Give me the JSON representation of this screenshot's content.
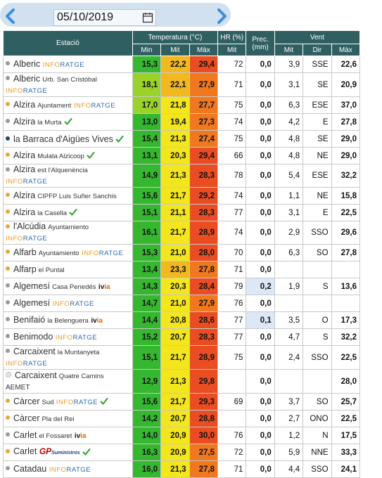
{
  "date_bar": {
    "date_value": "05/10/2019",
    "prev_icon": "chevron-left-icon",
    "next_icon": "chevron-right-icon",
    "calendar_icon": "calendar-icon",
    "accent_color": "#3a8ee0"
  },
  "headers": {
    "station": "Estació",
    "temperature": "Temperatura (°C)",
    "humidity": "HR (%)",
    "precipitation": "Prec. (mm)",
    "wind": "Vent",
    "min": "Min",
    "mit": "Mit",
    "max": "Màx",
    "hr_mit": "Mit",
    "wind_mit": "Mit",
    "wind_dir": "Dir",
    "wind_max": "Màx"
  },
  "temp_colors": {
    "min_green": "#35b82f",
    "min_lightgreen": "#9ad22a",
    "mit_yellow": "#f3e61c",
    "mit_orange": "#f2b820",
    "max_orange": "#f0781e",
    "max_red": "#ea4d22"
  },
  "rows": [
    {
      "name": "Alberic",
      "sub": "",
      "brand": "INFORATGE",
      "brand2": "",
      "dot": "#9a9a9a",
      "check": false,
      "min": "15,3",
      "mit": "22,2",
      "max": "29,4",
      "hr": "72",
      "prec": "0,0",
      "w_mit": "3,9",
      "w_dir": "SSE",
      "w_max": "22,6"
    },
    {
      "name": "Alberic",
      "sub": "Urb. San Cristóbal",
      "brand": "",
      "brand2": "INFORATGE",
      "dot": "#9a9a9a",
      "check": false,
      "min": "18,1",
      "mit": "22,1",
      "max": "27,9",
      "hr": "71",
      "prec": "0,0",
      "w_mit": "3,1",
      "w_dir": "SE",
      "w_max": "20,9"
    },
    {
      "name": "Alzira",
      "sub": "Ajuntament",
      "brand": "INFORATGE",
      "brand2": "",
      "dot": "#e8a73a",
      "check": false,
      "min": "17,0",
      "mit": "21,8",
      "max": "27,7",
      "hr": "75",
      "prec": "0,0",
      "w_mit": "6,3",
      "w_dir": "ESE",
      "w_max": "37,0"
    },
    {
      "name": "Alzira",
      "sub": "la Murta",
      "brand": "",
      "brand2": "",
      "dot": "#9a9a9a",
      "check": true,
      "min": "13,0",
      "mit": "19,4",
      "max": "27,3",
      "hr": "74",
      "prec": "0,0",
      "w_mit": "4,2",
      "w_dir": "E",
      "w_max": "27,8"
    },
    {
      "name": "la Barraca d'Aigües Vives",
      "sub": "",
      "brand": "",
      "brand2": "",
      "dot": "#1a4a6a",
      "check": true,
      "min": "15,4",
      "mit": "21,3",
      "max": "27,4",
      "hr": "75",
      "prec": "0,0",
      "w_mit": "4,8",
      "w_dir": "SE",
      "w_max": "29,0"
    },
    {
      "name": "Alzira",
      "sub": "Mulata Alzicoop",
      "brand": "",
      "brand2": "",
      "dot": "#e8a73a",
      "check": true,
      "min": "13,1",
      "mit": "20,3",
      "max": "29,4",
      "hr": "66",
      "prec": "0,0",
      "w_mit": "4,8",
      "w_dir": "NE",
      "w_max": "29,0"
    },
    {
      "name": "Alzira",
      "sub": "est l'Alquenència",
      "brand": "INFORATGE",
      "brand2": "",
      "dot": "#9a9a9a",
      "check": false,
      "min": "14,9",
      "mit": "21,3",
      "max": "28,3",
      "hr": "78",
      "prec": "0,0",
      "w_mit": "5,4",
      "w_dir": "ESE",
      "w_max": "32,2"
    },
    {
      "name": "Alzira",
      "sub": "CIPFP Luis Suñer Sanchis",
      "brand": "",
      "brand2": "",
      "dot": "#e8a73a",
      "check": false,
      "min": "15,6",
      "mit": "21,7",
      "max": "29,2",
      "hr": "74",
      "prec": "0,0",
      "w_mit": "1,1",
      "w_dir": "NE",
      "w_max": "15,8"
    },
    {
      "name": "Alzira",
      "sub": "la Casella",
      "brand": "",
      "brand2": "",
      "dot": "#e8a73a",
      "check": true,
      "min": "15,1",
      "mit": "21,1",
      "max": "28,3",
      "hr": "77",
      "prec": "0,0",
      "w_mit": "3,1",
      "w_dir": "E",
      "w_max": "22,5"
    },
    {
      "name": "l'Alcúdia",
      "sub": "Ayuntamiento",
      "brand": "INFORATGE",
      "brand2": "",
      "dot": "#e8a73a",
      "check": false,
      "min": "16,1",
      "mit": "21,7",
      "max": "28,9",
      "hr": "74",
      "prec": "0,0",
      "w_mit": "2,9",
      "w_dir": "SSO",
      "w_max": "29,6"
    },
    {
      "name": "Alfarb",
      "sub": "Ayuntamiento",
      "brand": "INFORATGE",
      "brand2": "",
      "dot": "#e8a73a",
      "check": false,
      "min": "15,3",
      "mit": "21,0",
      "max": "28,0",
      "hr": "70",
      "prec": "0,0",
      "w_mit": "6,3",
      "w_dir": "SO",
      "w_max": "27,8"
    },
    {
      "name": "Alfarp",
      "sub": "el Puntal",
      "brand": "",
      "brand2": "",
      "dot": "#e8a73a",
      "check": false,
      "min": "13,4",
      "mit": "23,3",
      "max": "27,8",
      "hr": "71",
      "prec": "0,0",
      "w_mit": "",
      "w_dir": "",
      "w_max": ""
    },
    {
      "name": "Algemesí",
      "sub": "Casa Penedés",
      "brand": "",
      "brand2": "",
      "ivia": true,
      "dot": "#9a9a9a",
      "check": false,
      "min": "14,3",
      "mit": "20,3",
      "max": "28,4",
      "hr": "79",
      "prec": "0,2",
      "prec_hl": true,
      "w_mit": "1,9",
      "w_dir": "S",
      "w_max": "13,6"
    },
    {
      "name": "Algemesí",
      "sub": "",
      "brand": "INFORATGE",
      "brand2": "",
      "dot": "#9a9a9a",
      "check": false,
      "min": "14,7",
      "mit": "21,0",
      "max": "27,9",
      "hr": "76",
      "prec": "0,0",
      "w_mit": "",
      "w_dir": "",
      "w_max": ""
    },
    {
      "name": "Benifaió",
      "sub": "la Belenguera",
      "brand": "",
      "brand2": "",
      "ivia": true,
      "dot": "#9a9a9a",
      "check": false,
      "min": "14,4",
      "mit": "20,8",
      "max": "28,6",
      "hr": "77",
      "prec": "0,1",
      "prec_hl": true,
      "w_mit": "3,5",
      "w_dir": "O",
      "w_max": "17,3"
    },
    {
      "name": "Benimodo",
      "sub": "",
      "brand": "INFORATGE",
      "brand2": "",
      "dot": "#9a9a9a",
      "check": false,
      "min": "15,2",
      "mit": "20,7",
      "max": "28,3",
      "hr": "77",
      "prec": "0,0",
      "w_mit": "4,7",
      "w_dir": "S",
      "w_max": "32,2"
    },
    {
      "name": "Carcaixent",
      "sub": "la Muntanyeta",
      "brand": "",
      "brand2": "INFORATGE",
      "dot": "#9a9a9a",
      "check": false,
      "min": "15,1",
      "mit": "21,7",
      "max": "28,9",
      "hr": "75",
      "prec": "0,0",
      "w_mit": "2,4",
      "w_dir": "SSO",
      "w_max": "22,5"
    },
    {
      "name": "Carcaixent",
      "sub": "Quatre Camins",
      "brand": "",
      "brand2": "",
      "aemet": "AEMET",
      "dot": "#e6e6e6",
      "check": false,
      "min": "12,9",
      "mit": "21,3",
      "max": "29,8",
      "hr": "",
      "prec": "0,0",
      "w_mit": "",
      "w_dir": "",
      "w_max": "28,0"
    },
    {
      "name": "Càrcer",
      "sub": "Sud",
      "brand": "INFORATGE",
      "brand2": "",
      "dot": "#e8a73a",
      "check": true,
      "min": "15,6",
      "mit": "21,7",
      "max": "29,3",
      "hr": "69",
      "prec": "0,0",
      "w_mit": "3,7",
      "w_dir": "SO",
      "w_max": "25,7"
    },
    {
      "name": "Càrcer",
      "sub": "Pla del Rei",
      "brand": "",
      "brand2": "",
      "dot": "#e8a73a",
      "check": false,
      "min": "14,2",
      "mit": "20,7",
      "max": "28,8",
      "hr": "",
      "prec": "0,0",
      "w_mit": "2,7",
      "w_dir": "ONO",
      "w_max": "22,5"
    },
    {
      "name": "Carlet",
      "sub": "el Fossaret",
      "brand": "",
      "brand2": "",
      "ivia": true,
      "dot": "#9a9a9a",
      "check": false,
      "min": "14,0",
      "mit": "20,9",
      "max": "30,0",
      "hr": "76",
      "prec": "0,0",
      "w_mit": "1,2",
      "w_dir": "N",
      "w_max": "17,5"
    },
    {
      "name": "Carlet",
      "sub": "",
      "brand": "",
      "brand2": "",
      "gp": true,
      "dot": "#e8a73a",
      "check": true,
      "min": "16,3",
      "mit": "20,9",
      "max": "27,5",
      "hr": "72",
      "prec": "0,0",
      "w_mit": "5,9",
      "w_dir": "NNE",
      "w_max": "33,3"
    },
    {
      "name": "Catadau",
      "sub": "",
      "brand": "INFORATGE",
      "brand2": "",
      "dot": "#9a9a9a",
      "check": false,
      "min": "16,0",
      "mit": "21,3",
      "max": "27,8",
      "hr": "71",
      "prec": "0,0",
      "w_mit": "4,4",
      "w_dir": "SSO",
      "w_max": "24,1"
    }
  ],
  "gp_label": "GP",
  "gp_sub": "Suministros"
}
